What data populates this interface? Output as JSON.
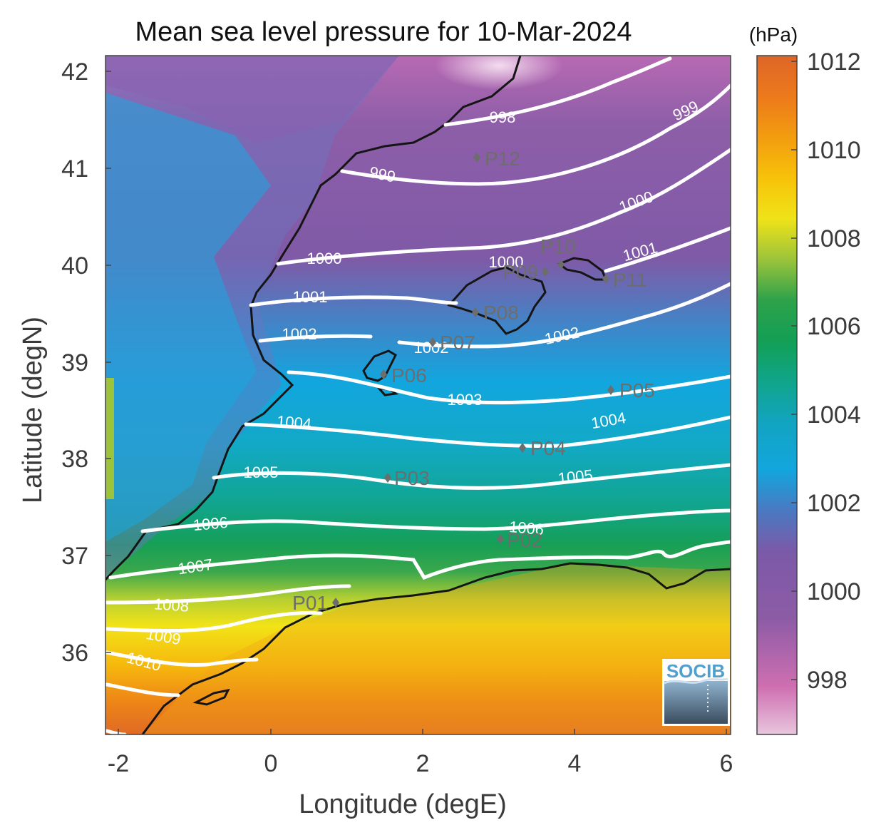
{
  "title": "Mean sea level pressure for 10-Mar-2024",
  "x_axis": {
    "label": "Longitude (degE)",
    "ticks": [
      "-2",
      "0",
      "2",
      "4",
      "6"
    ]
  },
  "y_axis": {
    "label": "Latitude (degN)",
    "ticks": [
      "42",
      "41",
      "40",
      "39",
      "38",
      "37",
      "36"
    ]
  },
  "colorbar": {
    "unit": "(hPa)",
    "ticks": [
      "1012",
      "1010",
      "1008",
      "1006",
      "1004",
      "1002",
      "1000",
      "998"
    ],
    "colors": [
      "#e8c6dd",
      "#cf6fb1",
      "#8d5ba6",
      "#7a5aa8",
      "#4a79c2",
      "#12a6de",
      "#12a4c0",
      "#10a58a",
      "#139f55",
      "#2ea24a",
      "#9cc43a",
      "#f0e318",
      "#f7c20a",
      "#f29c0f",
      "#ec7a1b",
      "#de6528"
    ]
  },
  "logo": {
    "text": "SOCIB"
  },
  "contour_labels": [
    "998",
    "999",
    "999",
    "1000",
    "1000",
    "1000",
    "1001",
    "1001",
    "1002",
    "1002",
    "1002",
    "1003",
    "1004",
    "1004",
    "1005",
    "1005",
    "1006",
    "1006",
    "1007",
    "1008",
    "1009",
    "1010"
  ],
  "stations": [
    "P01",
    "P02",
    "P03",
    "P04",
    "P05",
    "P06",
    "P07",
    "P08",
    "P09",
    "P10",
    "P11",
    "P12"
  ]
}
